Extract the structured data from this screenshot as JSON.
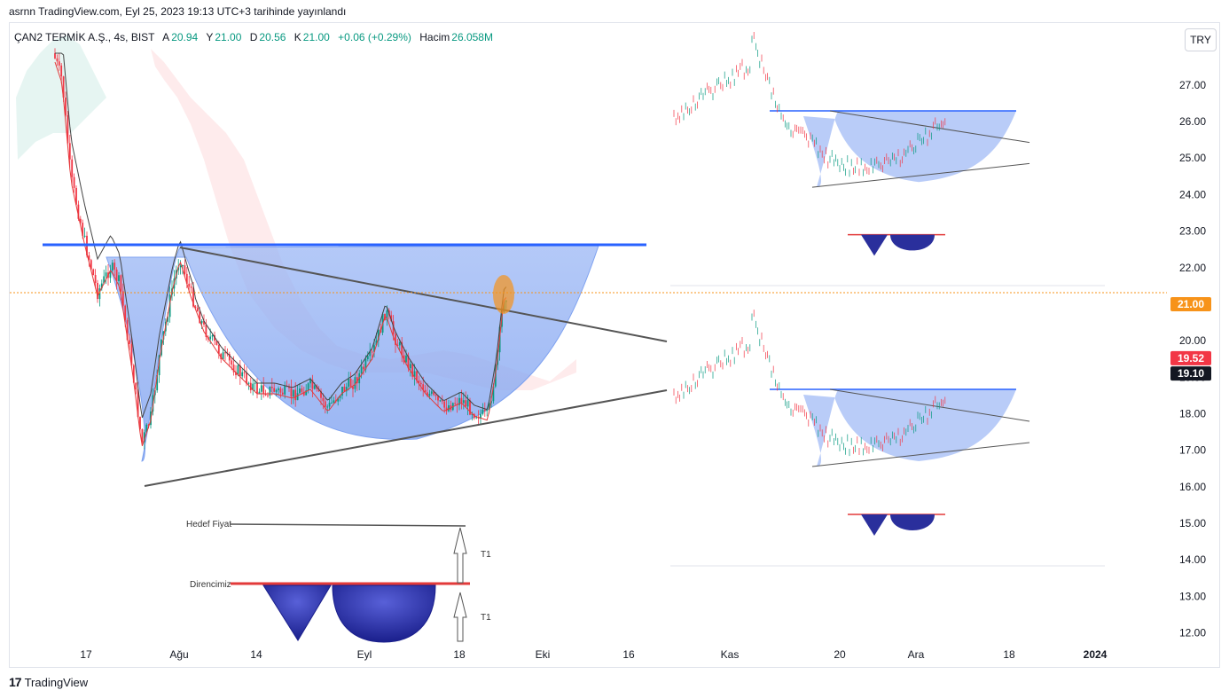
{
  "header": {
    "caption": "asrnn TradingView.com, Eyl 25, 2023 19:13 UTC+3 tarihinde yayınlandı"
  },
  "legend": {
    "symbol": "ÇAN2 TERMİK A.Ş., 4s, BIST",
    "open_label": "A",
    "open": "20.94",
    "high_label": "Y",
    "high": "21.00",
    "low_label": "D",
    "low": "20.56",
    "close_label": "K",
    "close": "21.00",
    "change": "+0.06 (+0.29%)",
    "volume_label": "Hacim",
    "volume": "26.058M"
  },
  "currency_button": "TRY",
  "footer": {
    "brand": "TradingView",
    "logo_glyph": "17"
  },
  "colors": {
    "up": "#089981",
    "down": "#f23645",
    "cup_fill": "#5b8def",
    "resistance": "#2962ff",
    "trendline": "#555555",
    "ma_fast": "#e33a3a",
    "ma_slow": "#444444",
    "price_label": "#f7931a"
  },
  "annotations": {
    "target_label": "Hedef Fiyat",
    "resistance_label": "Direncimiz",
    "t1_top": "T1",
    "t1_bottom": "T1"
  },
  "chart_data": {
    "type": "candlestick",
    "y_axis_ticks": [
      "27.00",
      "26.00",
      "25.00",
      "24.00",
      "23.00",
      "22.00",
      "21.00",
      "20.00",
      "19.00",
      "18.00",
      "17.00",
      "16.00",
      "15.00",
      "14.00",
      "13.00",
      "12.00"
    ],
    "ylim": [
      11.6,
      28.6
    ],
    "x_axis_labels": [
      "17",
      "Ağu",
      "14",
      "Eyl",
      "18",
      "Eki",
      "16",
      "Kas",
      "20",
      "Ara",
      "18",
      "2024"
    ],
    "price_labels": [
      {
        "value": "21.00",
        "color": "#f7931a",
        "text_color": "#ffffff"
      },
      {
        "value": "19.52",
        "color": "#f23645",
        "text_color": "#ffffff"
      },
      {
        "value": "19.10",
        "color": "#131722",
        "text_color": "#ffffff"
      }
    ],
    "resistance_level": 22.3,
    "last_price": 21.0
  }
}
